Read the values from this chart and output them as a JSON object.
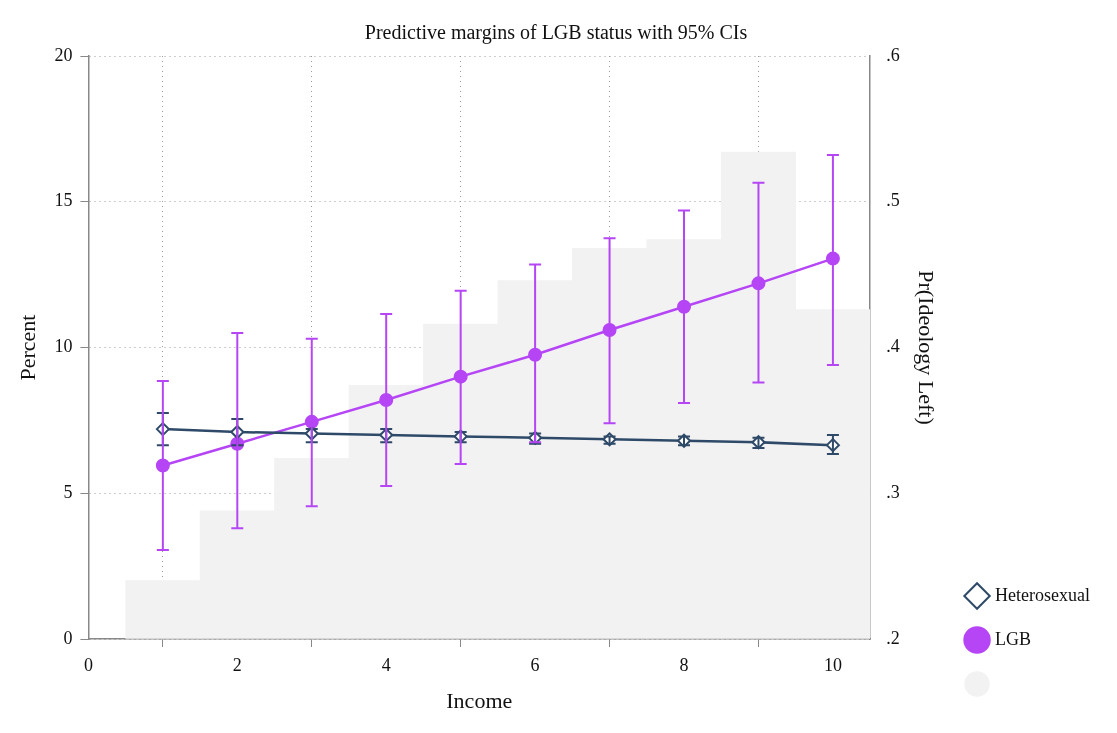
{
  "chart_data": {
    "type": "histogram",
    "title": "Predictive margins of LGB status with 95% CIs",
    "xlabel": "Income",
    "ylabel": "Percent",
    "y2label": "Pr(Ideology Left)",
    "bins": [
      0.5,
      1.5,
      2.5,
      3.5,
      4.5,
      5.5,
      6.5,
      7.5,
      8.5,
      9.5,
      10.5
    ],
    "values": [
      2.0,
      4.4,
      6.2,
      8.7,
      10.8,
      12.3,
      13.4,
      13.7,
      16.7,
      11.3
    ],
    "color": "#f2f2f2",
    "series": [
      {
        "name": "Heterosexual",
        "type": "line",
        "axis": "y2",
        "color": "#2e4a68",
        "marker": "diamond",
        "x": [
          1,
          2,
          3,
          4,
          5,
          6,
          7,
          8,
          9,
          10
        ],
        "values": [
          0.344,
          0.342,
          0.341,
          0.34,
          0.339,
          0.338,
          0.337,
          0.336,
          0.335,
          0.333
        ],
        "errors": [
          [
            0.333,
            0.355
          ],
          [
            0.333,
            0.351
          ],
          [
            0.335,
            0.344
          ],
          [
            0.335,
            0.344
          ],
          [
            0.335,
            0.342
          ],
          [
            0.334,
            0.341
          ],
          [
            0.334,
            0.339
          ],
          [
            0.333,
            0.339
          ],
          [
            0.331,
            0.338
          ],
          [
            0.327,
            0.34
          ]
        ]
      },
      {
        "name": "LGB",
        "type": "line",
        "axis": "y2",
        "color": "#b545f5",
        "marker": "circle",
        "x": [
          1,
          2,
          3,
          4,
          5,
          6,
          7,
          8,
          9,
          10
        ],
        "values": [
          0.319,
          0.334,
          0.349,
          0.364,
          0.38,
          0.395,
          0.412,
          0.428,
          0.444,
          0.461
        ],
        "errors": [
          [
            0.261,
            0.377
          ],
          [
            0.276,
            0.41
          ],
          [
            0.291,
            0.406
          ],
          [
            0.305,
            0.423
          ],
          [
            0.32,
            0.439
          ],
          [
            0.335,
            0.457
          ],
          [
            0.348,
            0.475
          ],
          [
            0.362,
            0.494
          ],
          [
            0.376,
            0.513
          ],
          [
            0.388,
            0.532
          ]
        ]
      }
    ],
    "xlim": [
      0,
      10.5
    ],
    "xticks": [
      0,
      2,
      4,
      6,
      8,
      10
    ],
    "ylim": [
      0,
      20
    ],
    "yticks": [
      0,
      5,
      10,
      15,
      20
    ],
    "y2lim": [
      0.2,
      0.6
    ],
    "y2ticks": [
      {
        "value": 0.2,
        "label": ".2"
      },
      {
        "value": 0.3,
        "label": ".3"
      },
      {
        "value": 0.4,
        "label": ".4"
      },
      {
        "value": 0.5,
        "label": ".5"
      },
      {
        "value": 0.6,
        "label": ".6"
      }
    ],
    "grid": true,
    "legend": "right"
  }
}
